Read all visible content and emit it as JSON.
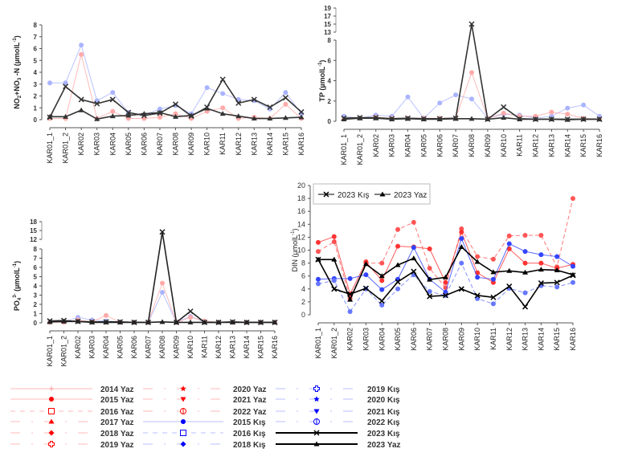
{
  "chart_data": [
    {
      "type": "line",
      "ylabel": "NO2+NO3 -N (µmolL-1)",
      "ylabel_parts": [
        "NO",
        "2",
        "+NO",
        "3",
        " -N (µmolL",
        "-1",
        ")"
      ],
      "categories": [
        "KAR01_1",
        "KAR01_2",
        "KAR02",
        "KAR03",
        "KAR04",
        "KAR05",
        "KAR06",
        "KAR07",
        "KAR08",
        "KAR09",
        "KAR10",
        "KAR11",
        "KAR12",
        "KAR13",
        "KAR14",
        "KAR15",
        "KAR16"
      ],
      "yticks": [
        0,
        1,
        2,
        3,
        4,
        5,
        6,
        7,
        8
      ],
      "ylim": [
        0,
        8
      ],
      "series": [
        {
          "name": "2015 Kış",
          "color": "#aab4ff",
          "values": [
            3.1,
            3.1,
            6.3,
            1.6,
            2.3,
            0.6,
            0.4,
            0.9,
            1.2,
            0.5,
            2.7,
            2.2,
            1.7,
            1.6,
            0.9,
            2.3,
            0.5
          ]
        },
        {
          "name": "2015 Yaz",
          "color": "#ffaaaa",
          "values": [
            0.1,
            0.1,
            5.5,
            0.1,
            0.7,
            0.1,
            0.1,
            0.2,
            0.5,
            0.1,
            0.7,
            1.0,
            0.1,
            0.2,
            0.1,
            1.3,
            0.1
          ]
        },
        {
          "name": "2023 Kış",
          "color": "#333333",
          "values": [
            0.2,
            2.8,
            1.7,
            1.35,
            1.7,
            0.6,
            0.35,
            0.55,
            1.3,
            0.3,
            1.05,
            3.4,
            1.4,
            1.7,
            1.05,
            1.85,
            0.65
          ]
        },
        {
          "name": "2023 Yaz",
          "color": "#333333",
          "values": [
            0.25,
            0.25,
            0.8,
            0.05,
            0.3,
            0.35,
            0.5,
            0.6,
            0.25,
            0.35,
            0.95,
            0.5,
            0.3,
            0.1,
            0.1,
            0.15,
            0.2
          ]
        }
      ]
    },
    {
      "type": "line",
      "ylabel": "TP (µmolL-1)",
      "ylabel_parts": [
        "TP (µmolL",
        "-1",
        ")"
      ],
      "categories": [
        "KAR01_1",
        "KAR01_2",
        "KAR02",
        "KAR03",
        "KAR04",
        "KAR05",
        "KAR06",
        "KAR07",
        "KAR08",
        "KAR09",
        "KAR10",
        "KAR11",
        "KAR12",
        "KAR13",
        "KAR14",
        "KAR15",
        "KAR16"
      ],
      "yticks": [
        0,
        2,
        4,
        6,
        8
      ],
      "break_ticks": [
        13,
        15,
        17,
        19
      ],
      "ylim": [
        0,
        19
      ],
      "series": [
        {
          "name": "2016 Kış",
          "color": "#aab4ff",
          "values": [
            0.5,
            0.3,
            0.6,
            0.5,
            2.4,
            0.3,
            1.8,
            2.6,
            2.2,
            0.3,
            0.7,
            0.6,
            0.3,
            0.5,
            1.3,
            1.6,
            0.5
          ]
        },
        {
          "name": "2015 Yaz",
          "color": "#ffaaaa",
          "values": [
            0.2,
            0.3,
            0.4,
            0.3,
            0.3,
            0.3,
            0.3,
            0.3,
            4.8,
            0.3,
            0.8,
            0.5,
            0.5,
            0.9,
            0.7,
            0.3,
            0.2
          ]
        },
        {
          "name": "2023 Kış",
          "color": "#333333",
          "values": [
            0.3,
            0.35,
            0.35,
            0.25,
            0.3,
            0.25,
            0.25,
            0.3,
            15,
            0.2,
            1.4,
            0.25,
            0.2,
            0.2,
            0.2,
            0.2,
            0.2
          ]
        },
        {
          "name": "2023 Yaz",
          "color": "#333333",
          "values": [
            0.2,
            0.3,
            0.3,
            0.2,
            0.25,
            0.2,
            0.2,
            0.25,
            0.25,
            0.2,
            0.35,
            0.2,
            0.2,
            0.2,
            0.15,
            0.2,
            0.2
          ]
        }
      ]
    },
    {
      "type": "line",
      "ylabel": "PO43- (µmolL-1)",
      "ylabel_parts": [
        "PO",
        "4",
        "3-",
        " (µmolL",
        "-1",
        ")"
      ],
      "categories": [
        "KAR01_1",
        "KAR01_2",
        "KAR02",
        "KAR03",
        "KAR04",
        "KAR05",
        "KAR06",
        "KAR07",
        "KAR08",
        "KAR09",
        "KAR10",
        "KAR11",
        "KAR12",
        "KAR13",
        "KAR14",
        "KAR15",
        "KAR16"
      ],
      "yticks": [
        0,
        1,
        2,
        3,
        4,
        5,
        6,
        7,
        8
      ],
      "break_ticks": [
        12,
        15,
        18
      ],
      "ylim": [
        0,
        18
      ],
      "series": [
        {
          "name": "2015 Kış",
          "color": "#aab4ff",
          "values": [
            0.1,
            0.1,
            0.6,
            0.3,
            0.2,
            0.1,
            0.05,
            0.05,
            3.3,
            0.05,
            0.7,
            0.1,
            0.05,
            0.1,
            0.05,
            0.05,
            0.05
          ]
        },
        {
          "name": "2017 Yaz",
          "color": "#ffaaaa",
          "values": [
            0.05,
            0.05,
            0.3,
            0.1,
            0.8,
            0.05,
            0.05,
            0.05,
            4.3,
            0.05,
            0.6,
            0.2,
            0.05,
            0.05,
            0.05,
            0.05,
            0.05
          ]
        },
        {
          "name": "2023 Kış",
          "color": "#222222",
          "values": [
            0.2,
            0.25,
            0.15,
            0.1,
            0.1,
            0.1,
            0.05,
            0.05,
            14.5,
            0.05,
            1.25,
            0.05,
            0.05,
            0.1,
            0.05,
            0.05,
            0.05
          ]
        },
        {
          "name": "2023 Yaz",
          "color": "#222222",
          "values": [
            0.1,
            0.15,
            0.15,
            0.05,
            0.05,
            0.05,
            0.05,
            0.05,
            0.1,
            0.05,
            0.05,
            0.05,
            0.05,
            0.05,
            0.05,
            0.05,
            0.05
          ]
        }
      ]
    },
    {
      "type": "line",
      "ylabel": "DIN (µmolL-1)",
      "ylabel_parts": [
        "DIN (µmolL",
        "-1",
        ")"
      ],
      "categories": [
        "KAR01_1",
        "KAR01_2",
        "KAR02",
        "KAR03",
        "KAR04",
        "KAR05",
        "KAR06",
        "KAR07",
        "KAR08",
        "KAR09",
        "KAR10",
        "KAR11",
        "KAR12",
        "KAR13",
        "KAR14",
        "KAR15",
        "KAR16"
      ],
      "yticks": [
        0,
        2,
        4,
        6,
        8,
        10,
        12,
        14,
        16,
        18,
        20
      ],
      "ylim": [
        0,
        20
      ],
      "legend": {
        "position": "top-left",
        "entries": [
          "2023 Kış",
          "2023 Yaz"
        ]
      },
      "series": [
        {
          "name": "2016 Yaz",
          "color": "#ff5555",
          "dashed": true,
          "values": [
            9.8,
            11.3,
            2.5,
            8.0,
            8.0,
            13.2,
            14.3,
            7.2,
            4.2,
            13.3,
            9.0,
            8.6,
            12.2,
            12.3,
            12.3,
            7.4,
            18.0
          ]
        },
        {
          "name": "2015 Yaz",
          "color": "#ff3333",
          "values": [
            11.2,
            12.1,
            3.2,
            8.2,
            5.3,
            10.6,
            10.5,
            10.2,
            5.0,
            12.8,
            6.5,
            5.0,
            10.2,
            8.0,
            8.0,
            7.2,
            7.8
          ]
        },
        {
          "name": "2015 Kış",
          "color": "#3344ff",
          "values": [
            5.5,
            5.6,
            5.6,
            6.2,
            3.9,
            5.5,
            10.4,
            5.5,
            3.5,
            11.8,
            5.8,
            5.5,
            11.0,
            9.8,
            9.3,
            9.0,
            7.5
          ]
        },
        {
          "name": "2018 Kış",
          "color": "#6677ff",
          "dashed": true,
          "values": [
            4.8,
            5.3,
            0.5,
            4.0,
            1.5,
            4.0,
            6.2,
            3.6,
            3.0,
            8.0,
            2.5,
            1.7,
            4.1,
            3.4,
            4.5,
            4.3,
            5.0
          ]
        },
        {
          "name": "2023 Kış",
          "color": "#000000",
          "marker": "x",
          "values": [
            8.55,
            4.0,
            3.2,
            4.1,
            2.15,
            5.1,
            6.7,
            2.85,
            3.0,
            4.0,
            3.0,
            2.7,
            4.4,
            1.25,
            4.9,
            5.0,
            6.1
          ]
        },
        {
          "name": "2023 Yaz",
          "color": "#000000",
          "marker": "triangle",
          "values": [
            8.55,
            8.55,
            2.35,
            7.85,
            6.0,
            7.7,
            8.75,
            5.45,
            5.8,
            10.5,
            8.2,
            6.6,
            6.8,
            6.55,
            7.0,
            6.9,
            6.2
          ]
        }
      ]
    }
  ],
  "legend": {
    "entries": [
      {
        "label": "2014 Yaz",
        "color": "#ff9999",
        "marker": "plus",
        "line": "solid"
      },
      {
        "label": "2015 Yaz",
        "color": "#ff0000",
        "marker": "circle",
        "line": "solid"
      },
      {
        "label": "2016 Yaz",
        "color": "#ff0000",
        "marker": "square-open",
        "line": "dashed"
      },
      {
        "label": "2017 Yaz",
        "color": "#ff0000",
        "marker": "triangle",
        "line": "dashdot"
      },
      {
        "label": "2018 Yaz",
        "color": "#ff0000",
        "marker": "diamond",
        "line": "dashdot"
      },
      {
        "label": "2019 Yaz",
        "color": "#ff0000",
        "marker": "cross-open",
        "line": "dashdot"
      },
      {
        "label": "2020 Yaz",
        "color": "#ff0000",
        "marker": "star",
        "line": "dashdot"
      },
      {
        "label": "2021 Yaz",
        "color": "#ff0000",
        "marker": "triangle-down",
        "line": "dashdot"
      },
      {
        "label": "2022 Yaz",
        "color": "#ff0000",
        "marker": "circle-plus",
        "line": "dashdot"
      },
      {
        "label": "2015 Kış",
        "color": "#0000ff",
        "marker": "circle",
        "line": "solid"
      },
      {
        "label": "2016 Kış",
        "color": "#0000ff",
        "marker": "square-open",
        "line": "dashed"
      },
      {
        "label": "2018 Kış",
        "color": "#0000ff",
        "marker": "diamond",
        "line": "dashdot"
      },
      {
        "label": "2019 Kış",
        "color": "#0000ff",
        "marker": "cross-open",
        "line": "dashdot"
      },
      {
        "label": "2020 Kış",
        "color": "#0000ff",
        "marker": "star",
        "line": "dashdot"
      },
      {
        "label": "2021 Kış",
        "color": "#0000ff",
        "marker": "triangle-down",
        "line": "dashdot"
      },
      {
        "label": "2022 Kış",
        "color": "#0000ff",
        "marker": "circle-plus",
        "line": "dashdot"
      },
      {
        "label": "2023 Kış",
        "color": "#000000",
        "marker": "x",
        "line": "solid"
      },
      {
        "label": "2023 Yaz",
        "color": "#000000",
        "marker": "triangle",
        "line": "solid"
      }
    ]
  }
}
